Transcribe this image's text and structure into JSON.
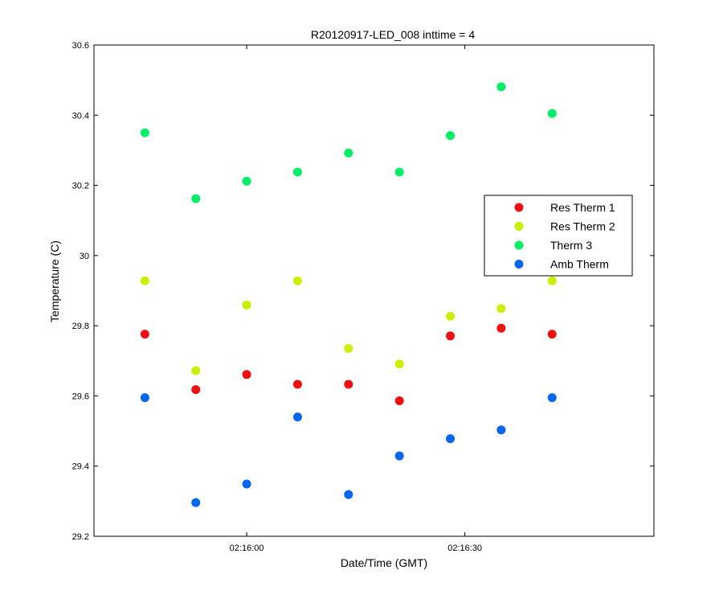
{
  "chart_data": {
    "type": "scatter",
    "title": "R20120917-LED_008 inttime = 4",
    "xlabel": "Date/Time (GMT)",
    "ylabel": "Temperature (C)",
    "x_axis": {
      "range": [
        "02:15:39",
        "02:16:56"
      ],
      "ticks": [
        {
          "value": "02:16:00",
          "label": "02:16:00"
        },
        {
          "value": "02:16:30",
          "label": "02:16:30"
        }
      ]
    },
    "y_axis": {
      "range": [
        29.2,
        30.6
      ],
      "ticks": [
        {
          "value": 29.2,
          "label": "29.2"
        },
        {
          "value": 29.4,
          "label": "29.4"
        },
        {
          "value": 29.6,
          "label": "29.6"
        },
        {
          "value": 29.8,
          "label": "29.8"
        },
        {
          "value": 30.0,
          "label": "30"
        },
        {
          "value": 30.2,
          "label": "30.2"
        },
        {
          "value": 30.4,
          "label": "30.4"
        },
        {
          "value": 30.6,
          "label": "30.6"
        }
      ]
    },
    "grid": false,
    "legend": "right",
    "x": [
      "02:15:46",
      "02:15:53",
      "02:16:00",
      "02:16:07",
      "02:16:14",
      "02:16:21",
      "02:16:28",
      "02:16:35",
      "02:16:42"
    ],
    "series": [
      {
        "name": "Res Therm 1",
        "color": "#ee1111",
        "values": [
          29.776,
          29.618,
          29.661,
          29.633,
          29.633,
          29.586,
          29.771,
          29.793,
          29.776
        ]
      },
      {
        "name": "Res Therm 2",
        "color": "#ccee00",
        "values": [
          29.928,
          29.672,
          29.859,
          29.928,
          29.735,
          29.691,
          29.827,
          29.849,
          29.928
        ]
      },
      {
        "name": "Therm 3",
        "color": "#00ee66",
        "values": [
          30.35,
          30.162,
          30.212,
          30.238,
          30.292,
          30.238,
          30.342,
          30.481,
          30.405
        ]
      },
      {
        "name": "Amb Therm",
        "color": "#0066ee",
        "values": [
          29.595,
          29.296,
          29.349,
          29.54,
          29.319,
          29.429,
          29.478,
          29.503,
          29.595
        ]
      }
    ]
  }
}
